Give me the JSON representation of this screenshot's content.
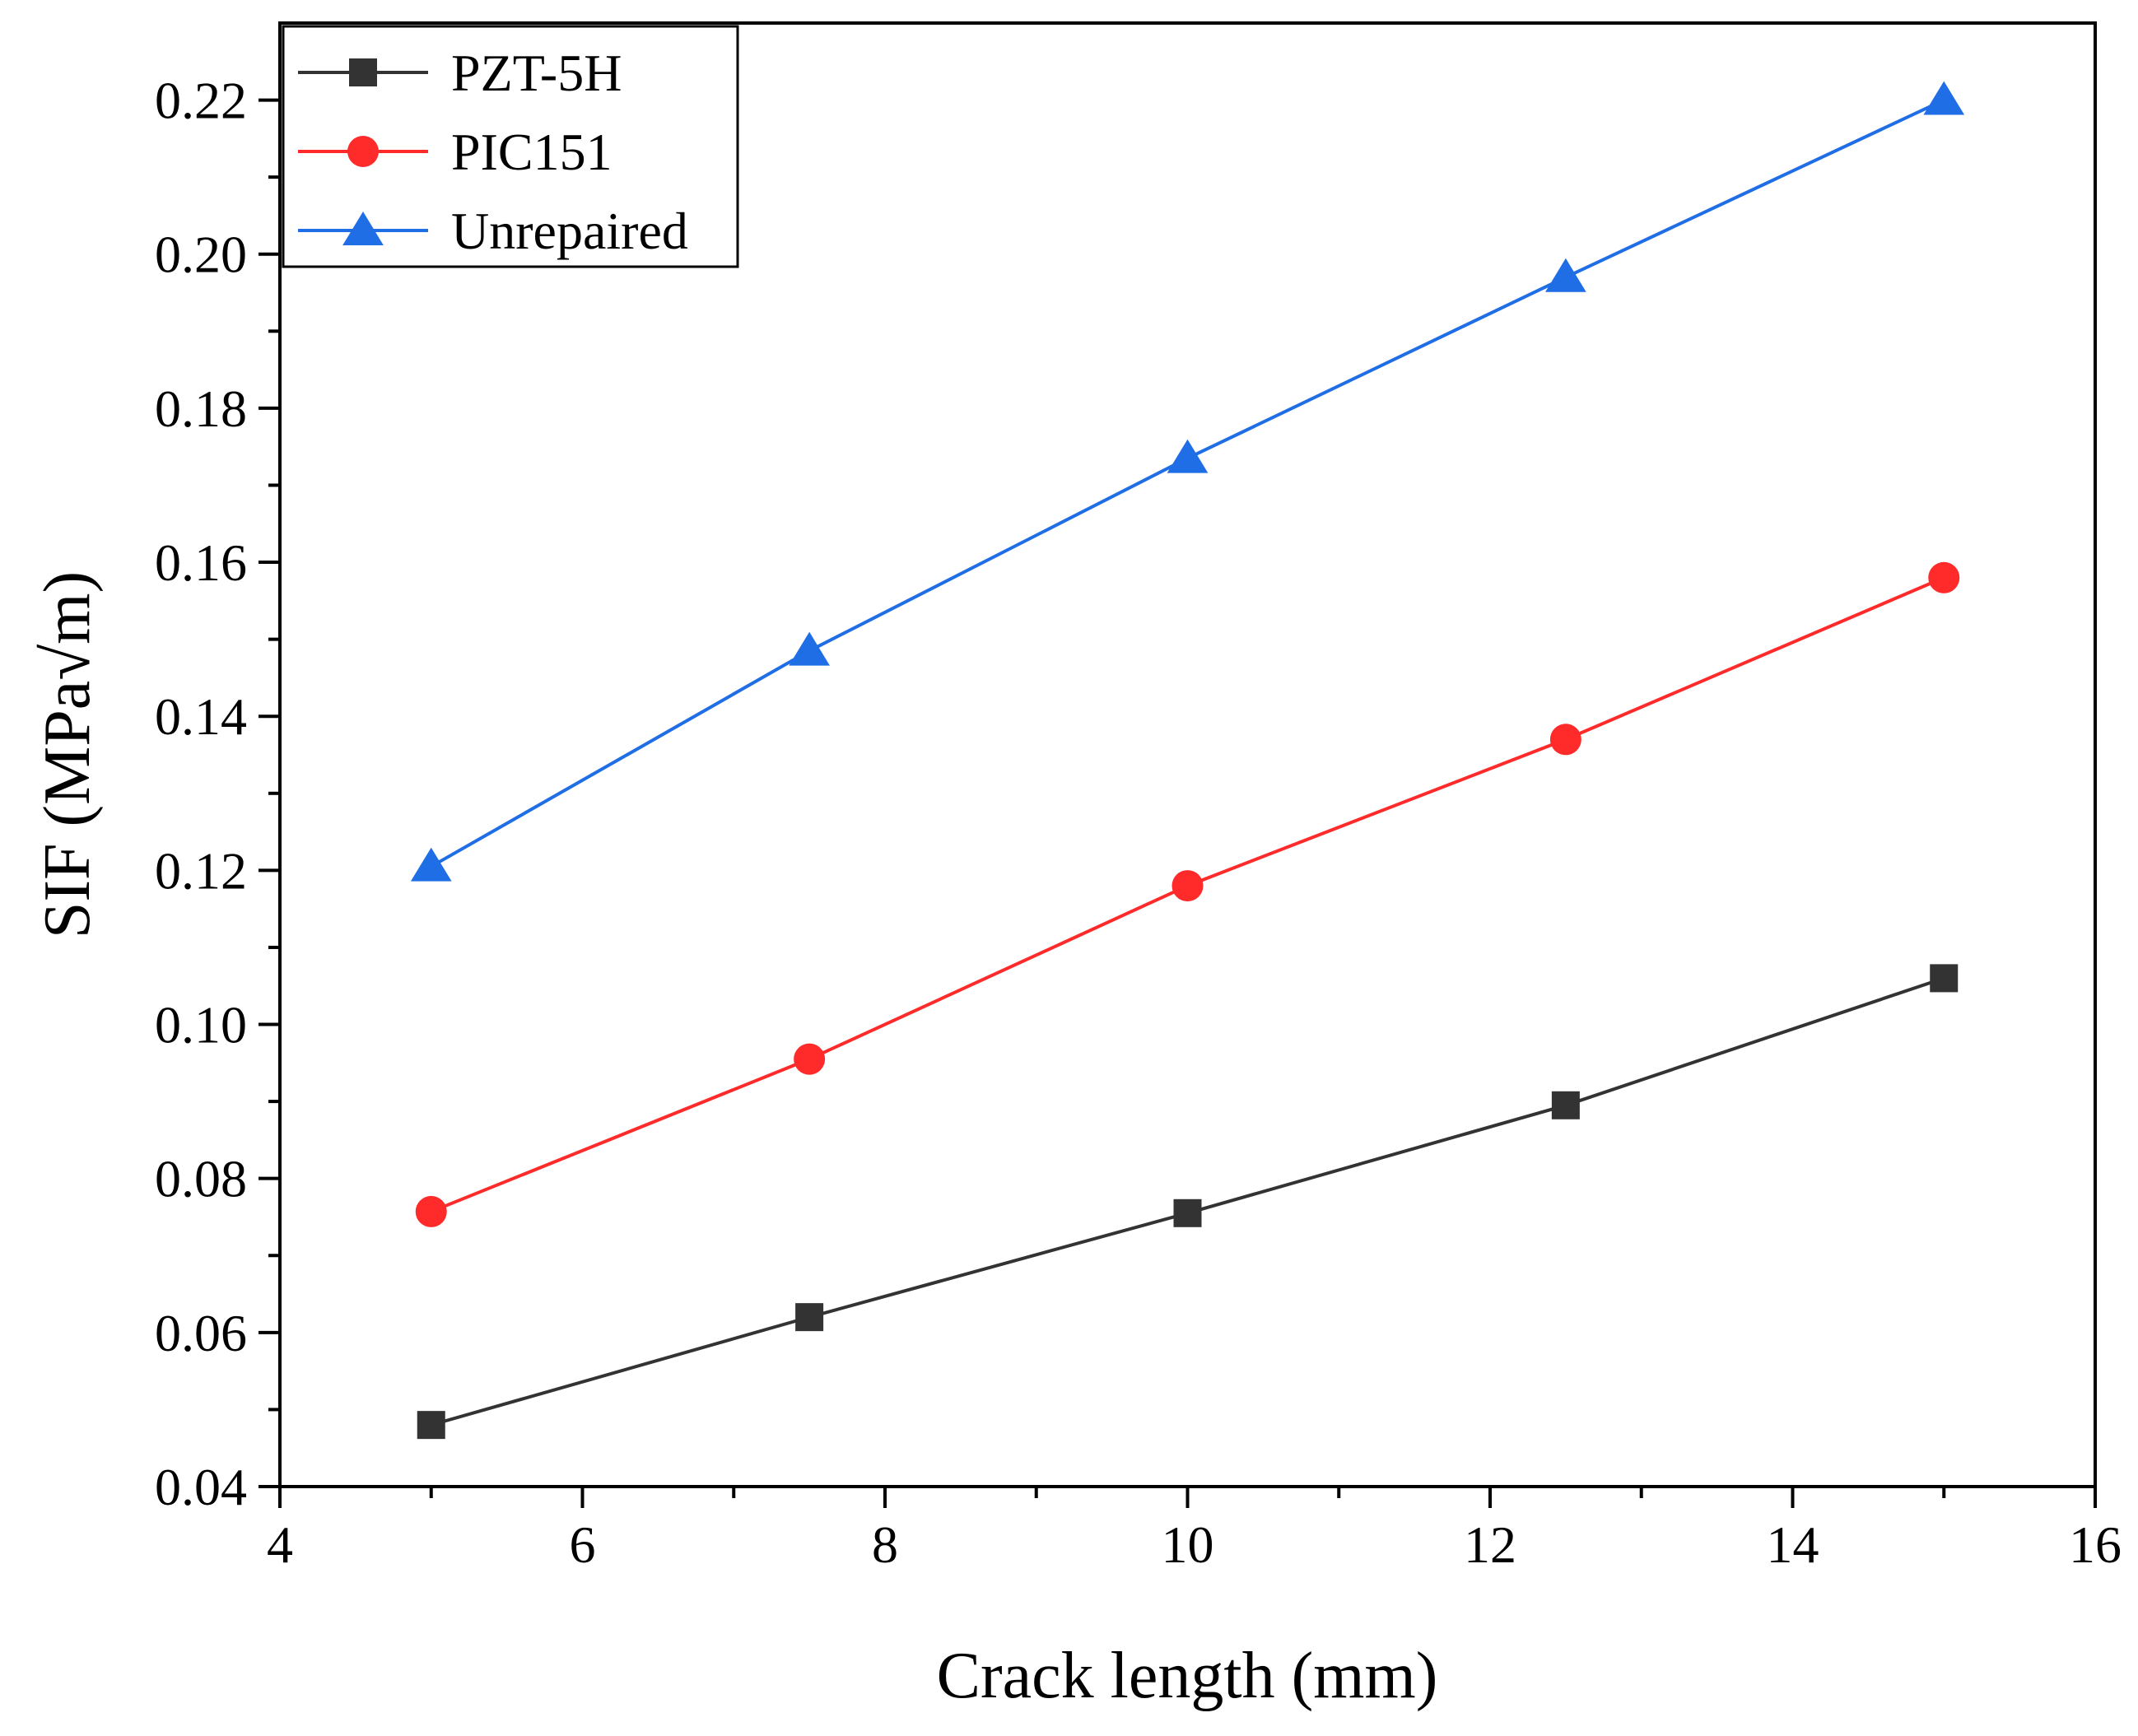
{
  "chart_data": {
    "type": "line",
    "title": "",
    "xlabel": "Crack length (mm)",
    "ylabel": "SIF (MPa√m)",
    "xlim": [
      4,
      16
    ],
    "ylim": [
      0.04,
      0.23
    ],
    "xticks": [
      4,
      6,
      8,
      10,
      12,
      14,
      16
    ],
    "xtick_labels": [
      "4",
      "6",
      "8",
      "10",
      "12",
      "14",
      "16"
    ],
    "yticks": [
      0.04,
      0.06,
      0.08,
      0.1,
      0.12,
      0.14,
      0.16,
      0.18,
      0.2,
      0.22
    ],
    "ytick_labels": [
      "0.04",
      "0.06",
      "0.08",
      "0.10",
      "0.12",
      "0.14",
      "0.16",
      "0.18",
      "0.20",
      "0.22"
    ],
    "grid": false,
    "legend_position": "top-left",
    "x": [
      5,
      7.5,
      10,
      12.5,
      15
    ],
    "series": [
      {
        "name": "PZT-5H",
        "marker": "square",
        "color": "#333333",
        "values": [
          0.048,
          0.062,
          0.0755,
          0.0895,
          0.106
        ]
      },
      {
        "name": "PIC151",
        "marker": "circle",
        "color": "#ff2a2a",
        "values": [
          0.0757,
          0.0955,
          0.118,
          0.137,
          0.158
        ]
      },
      {
        "name": "Unrepaired",
        "marker": "triangle",
        "color": "#1f6ee6",
        "values": [
          0.1205,
          0.1485,
          0.1735,
          0.197,
          0.22
        ]
      }
    ]
  }
}
